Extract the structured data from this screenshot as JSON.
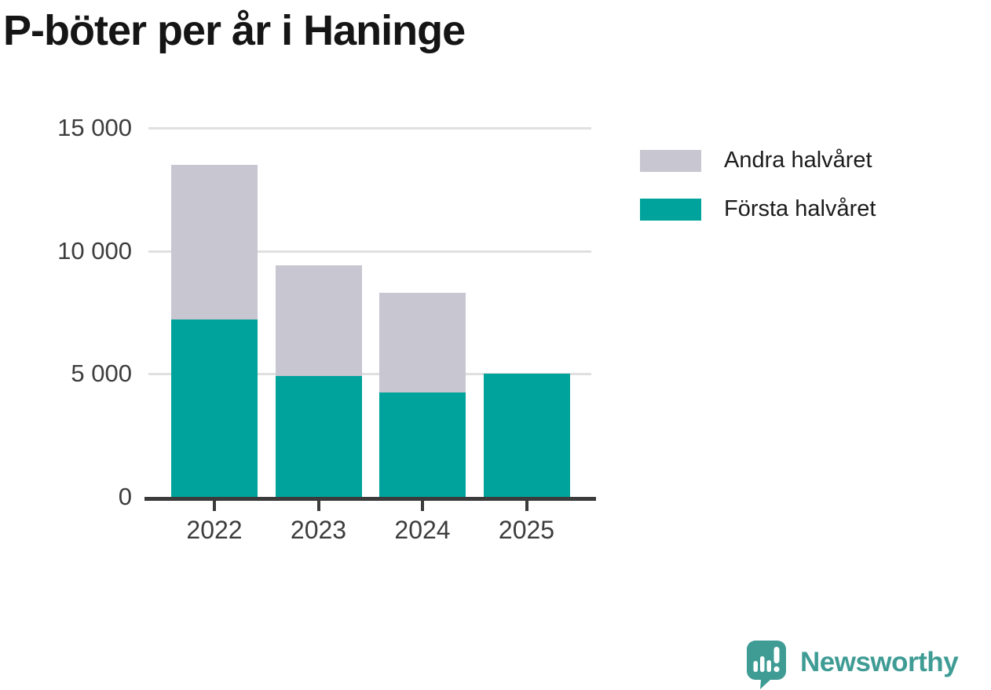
{
  "title": "P-böter per år i Haninge",
  "chart_data": {
    "type": "bar",
    "subtype": "stacked",
    "title": "P-böter per år i Haninge",
    "categories": [
      "2022",
      "2023",
      "2024",
      "2025"
    ],
    "series": [
      {
        "name": "Första halvåret",
        "color": "#00a39b",
        "values": [
          7200,
          4900,
          4250,
          5000
        ]
      },
      {
        "name": "Andra halvåret",
        "color": "#c8c6d0",
        "values": [
          6300,
          4500,
          4050,
          0
        ]
      }
    ],
    "totals": [
      13500,
      9400,
      8300,
      5000
    ],
    "xlabel": "",
    "ylabel": "",
    "ylim": [
      0,
      15000
    ],
    "yticks": [
      {
        "label": "0",
        "value": 0
      },
      {
        "label": "5 000",
        "value": 5000
      },
      {
        "label": "10 000",
        "value": 10000
      },
      {
        "label": "15 000",
        "value": 15000
      }
    ],
    "grid": "horizontal",
    "legend_position": "right",
    "legend": [
      {
        "label": "Andra halvåret",
        "color": "#c8c6d0"
      },
      {
        "label": "Första halvåret",
        "color": "#00a39b"
      }
    ]
  },
  "branding": {
    "logo_text": "Newsworthy",
    "logo_color": "#3f9c95"
  },
  "colors": {
    "first_half": "#00a39b",
    "second_half": "#c8c6d0",
    "axis": "#3b3b3b",
    "gridline": "#e0e0e0",
    "title_text": "#151515"
  }
}
